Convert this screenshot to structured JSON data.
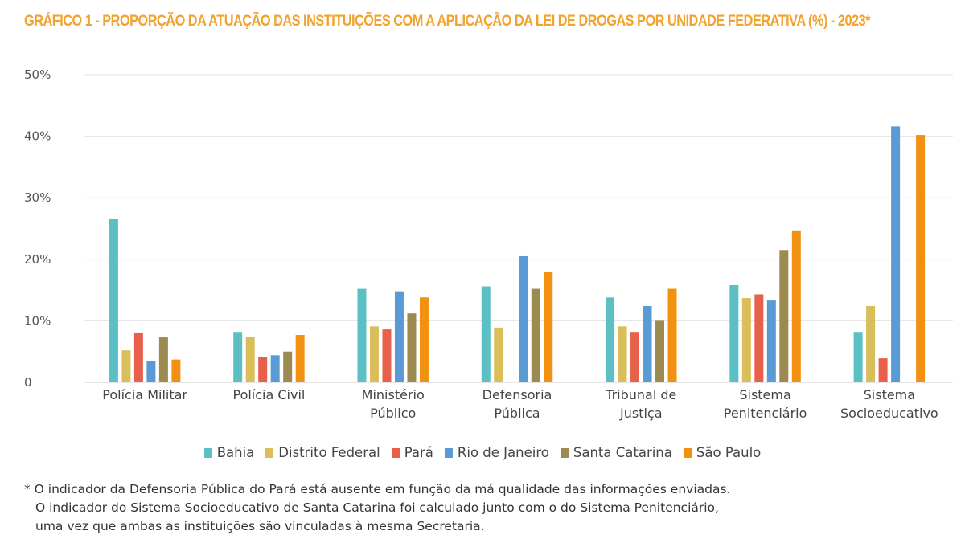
{
  "title": "GRÁFICO 1 - PROPORÇÃO DA ATUAÇÃO DAS INSTITUIÇÕES COM A APLICAÇÃO DA LEI DE DROGAS POR UNIDADE FEDERATIVA (%) - 2023*",
  "chart_data": {
    "type": "bar",
    "title": "GRÁFICO 1 - PROPORÇÃO DA ATUAÇÃO DAS INSTITUIÇÕES COM A APLICAÇÃO DA LEI DE DROGAS POR UNIDADE FEDERATIVA (%) - 2023*",
    "categories": [
      [
        "Polícia Militar"
      ],
      [
        "Polícia Civil"
      ],
      [
        "Ministério",
        "Público"
      ],
      [
        "Defensoria",
        "Pública"
      ],
      [
        "Tribunal de",
        "Justiça"
      ],
      [
        "Sistema",
        "Penitenciário"
      ],
      [
        "Sistema",
        "Socioeducativo"
      ]
    ],
    "series": [
      {
        "name": "Bahia",
        "color": "#5BC0C4",
        "values": [
          26.5,
          8.2,
          15.2,
          15.6,
          13.8,
          15.8,
          8.2
        ]
      },
      {
        "name": "Distrito Federal",
        "color": "#D9BE5A",
        "values": [
          5.2,
          7.4,
          9.1,
          8.9,
          9.1,
          13.7,
          12.4
        ]
      },
      {
        "name": "Pará",
        "color": "#E8604C",
        "values": [
          8.1,
          4.1,
          8.6,
          null,
          8.2,
          14.3,
          3.9
        ]
      },
      {
        "name": "Rio de Janeiro",
        "color": "#5B9BD5",
        "values": [
          3.5,
          4.4,
          14.8,
          20.5,
          12.4,
          13.3,
          41.6
        ]
      },
      {
        "name": "Santa Catarina",
        "color": "#9C8A50",
        "values": [
          7.3,
          5.0,
          11.2,
          15.2,
          10.0,
          21.5,
          null
        ]
      },
      {
        "name": "São Paulo",
        "color": "#F29111",
        "values": [
          3.7,
          7.7,
          13.8,
          18.0,
          15.2,
          24.7,
          40.2
        ]
      }
    ],
    "yticks": [
      "0",
      "10%",
      "20%",
      "30%",
      "40%",
      "50%"
    ],
    "ylim": [
      0,
      50
    ],
    "grid": true,
    "legend": "bottom"
  },
  "footnote": [
    "* O indicador da Defensoria Pública do Pará está ausente em função da má qualidade das informações enviadas.",
    "O indicador do Sistema Socioeducativo de Santa Catarina foi calculado junto com o do Sistema Penitenciário,",
    "uma vez que ambas as instituições são vinculadas à mesma Secretaria."
  ]
}
